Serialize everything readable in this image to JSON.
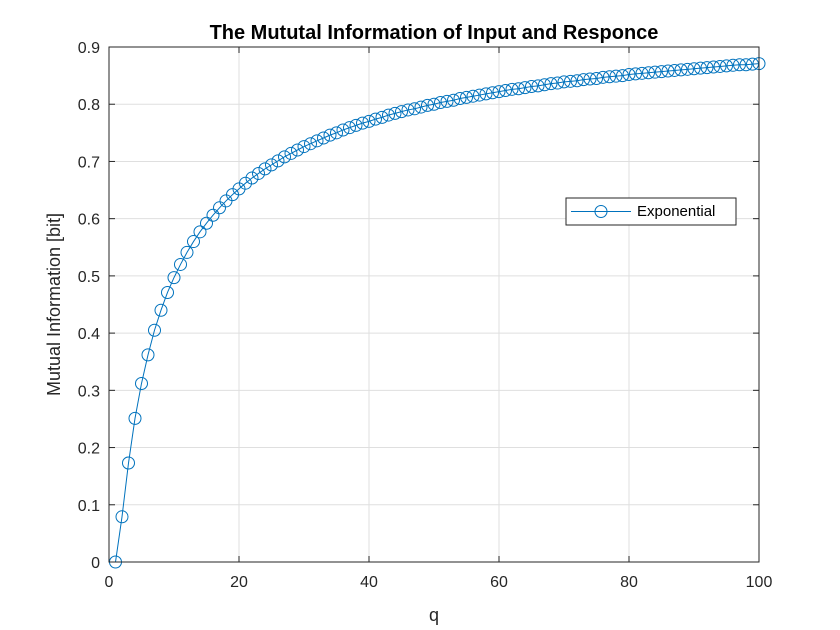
{
  "chart_data": {
    "type": "line",
    "title": "The Mututal Information of Input and Responce",
    "xlabel": "q",
    "ylabel": "Mutual Information [bit]",
    "xlim": [
      0,
      100
    ],
    "ylim": [
      0,
      0.9
    ],
    "xticks": [
      0,
      20,
      40,
      60,
      80,
      100
    ],
    "xtick_labels": [
      "0",
      "20",
      "40",
      "60",
      "80",
      "100"
    ],
    "yticks": [
      0,
      0.1,
      0.2,
      0.3,
      0.4,
      0.5,
      0.6,
      0.7,
      0.8,
      0.9
    ],
    "ytick_labels": [
      "0",
      "0.1",
      "0.2",
      "0.3",
      "0.4",
      "0.5",
      "0.6",
      "0.7",
      "0.8",
      "0.9"
    ],
    "grid": true,
    "legend_position": "right",
    "marker": "circle-open",
    "series": [
      {
        "name": "Exponential",
        "color": "#0072bd",
        "x": [
          1,
          2,
          3,
          4,
          5,
          6,
          7,
          8,
          9,
          10,
          11,
          12,
          13,
          14,
          15,
          16,
          17,
          18,
          19,
          20,
          21,
          22,
          23,
          24,
          25,
          26,
          27,
          28,
          29,
          30,
          31,
          32,
          33,
          34,
          35,
          36,
          37,
          38,
          39,
          40,
          41,
          42,
          43,
          44,
          45,
          46,
          47,
          48,
          49,
          50,
          51,
          52,
          53,
          54,
          55,
          56,
          57,
          58,
          59,
          60,
          61,
          62,
          63,
          64,
          65,
          66,
          67,
          68,
          69,
          70,
          71,
          72,
          73,
          74,
          75,
          76,
          77,
          78,
          79,
          80,
          81,
          82,
          83,
          84,
          85,
          86,
          87,
          88,
          89,
          90,
          91,
          92,
          93,
          94,
          95,
          96,
          97,
          98,
          99,
          100
        ],
        "y": [
          0.0,
          0.079,
          0.173,
          0.251,
          0.312,
          0.362,
          0.405,
          0.44,
          0.471,
          0.497,
          0.52,
          0.541,
          0.56,
          0.577,
          0.592,
          0.606,
          0.619,
          0.631,
          0.642,
          0.652,
          0.662,
          0.671,
          0.679,
          0.687,
          0.694,
          0.701,
          0.708,
          0.714,
          0.72,
          0.726,
          0.731,
          0.736,
          0.741,
          0.746,
          0.75,
          0.755,
          0.759,
          0.763,
          0.767,
          0.77,
          0.774,
          0.777,
          0.781,
          0.784,
          0.787,
          0.79,
          0.792,
          0.795,
          0.798,
          0.8,
          0.803,
          0.805,
          0.807,
          0.81,
          0.812,
          0.814,
          0.816,
          0.818,
          0.82,
          0.822,
          0.824,
          0.826,
          0.827,
          0.829,
          0.831,
          0.832,
          0.834,
          0.836,
          0.837,
          0.839,
          0.84,
          0.841,
          0.843,
          0.844,
          0.845,
          0.847,
          0.848,
          0.849,
          0.85,
          0.852,
          0.853,
          0.854,
          0.855,
          0.856,
          0.857,
          0.858,
          0.859,
          0.86,
          0.861,
          0.862,
          0.863,
          0.864,
          0.865,
          0.866,
          0.867,
          0.868,
          0.869,
          0.869,
          0.87,
          0.871
        ]
      }
    ]
  }
}
